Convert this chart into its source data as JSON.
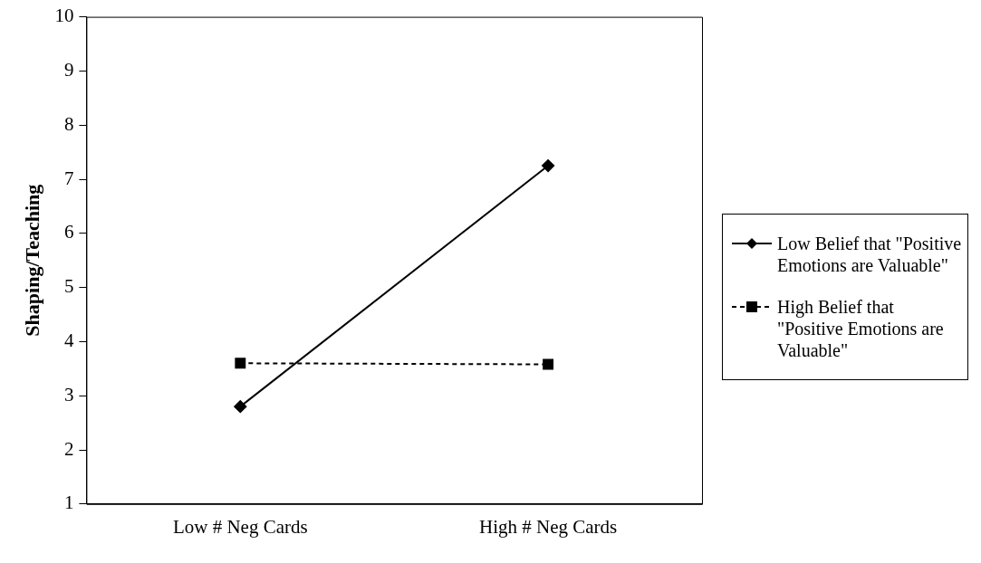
{
  "chart_data": {
    "type": "line",
    "ylabel": "Shaping/Teaching",
    "categories": [
      "Low # Neg Cards",
      "High # Neg Cards"
    ],
    "series": [
      {
        "name": "Low Belief that \"Positive Emotions are Valuable\"",
        "color": "#000000",
        "values": [
          2.8,
          7.25
        ],
        "marker": "diamond",
        "line_style": "solid"
      },
      {
        "name": "High Belief that \"Positive Emotions are Valuable\"",
        "color": "#000000",
        "values": [
          3.6,
          3.58
        ],
        "marker": "square",
        "line_style": "dashed"
      }
    ],
    "ylim": [
      1,
      10
    ],
    "yticks": [
      1,
      2,
      3,
      4,
      5,
      6,
      7,
      8,
      9,
      10
    ],
    "grid": false,
    "legend": "right"
  }
}
